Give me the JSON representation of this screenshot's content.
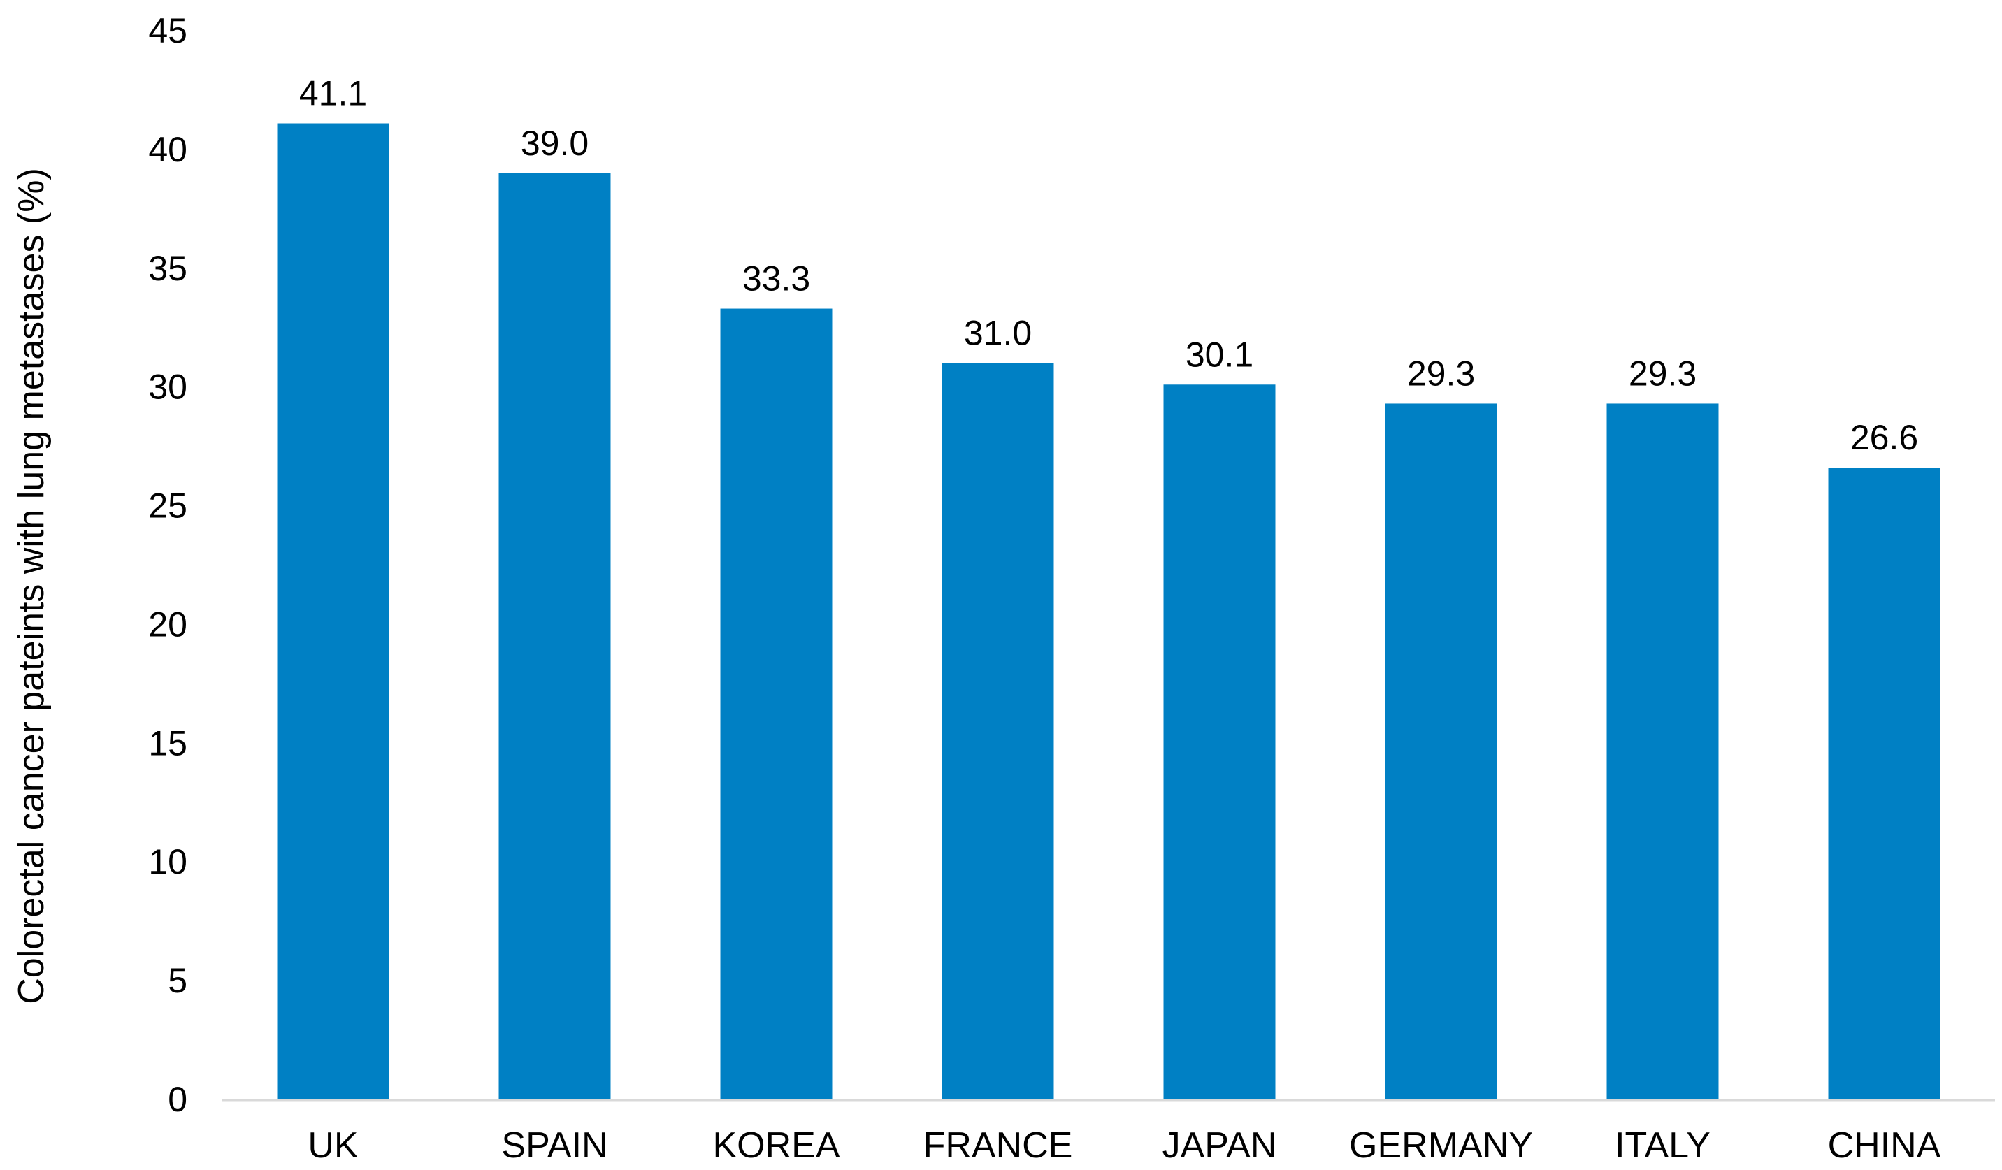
{
  "chart_data": {
    "type": "bar",
    "title": "",
    "xlabel": "",
    "ylabel": "Colorectal cancer pateints with lung metastases (%)",
    "categories": [
      "UK",
      "SPAIN",
      "KOREA",
      "FRANCE",
      "JAPAN",
      "GERMANY",
      "ITALY",
      "CHINA"
    ],
    "values": [
      41.1,
      39.0,
      33.3,
      31.0,
      30.1,
      29.3,
      29.3,
      26.6
    ],
    "data_labels": [
      "41.1",
      "39.0",
      "33.3",
      "31.0",
      "30.1",
      "29.3",
      "29.3",
      "26.6"
    ],
    "ylim": [
      0,
      45
    ],
    "yticks": [
      0,
      5,
      10,
      15,
      20,
      25,
      30,
      35,
      40,
      45
    ],
    "grid": false,
    "legend": "none",
    "bar_color": "#0080C4",
    "axis_color": "#D9D9D9"
  }
}
